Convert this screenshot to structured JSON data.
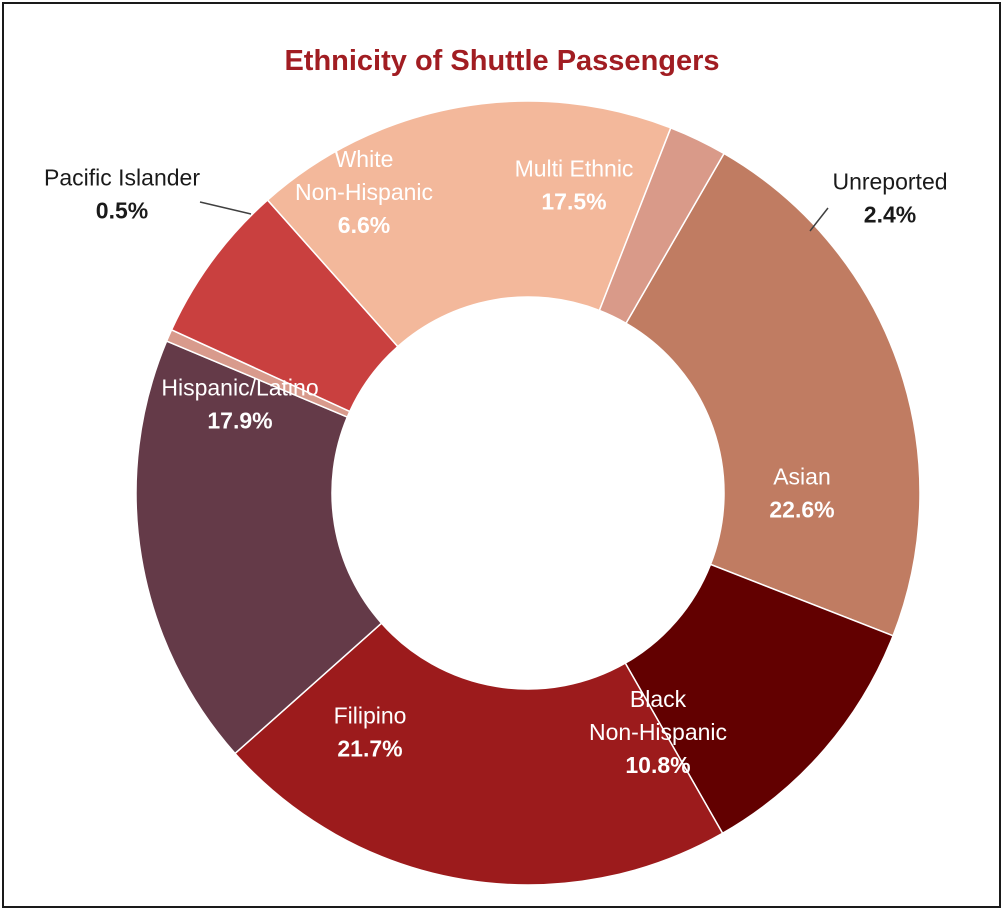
{
  "chart_data": {
    "type": "pie",
    "variant": "donut",
    "title": "Ethnicity of Shuttle Passengers",
    "title_color": "#a11d22",
    "unit": "%",
    "slices": [
      {
        "label_lines": [
          "Asian"
        ],
        "value": 22.6,
        "value_label": "22.6%",
        "color": "#c07c62",
        "label_color": "#ffffff"
      },
      {
        "label_lines": [
          "Black",
          "Non-Hispanic"
        ],
        "value": 10.8,
        "value_label": "10.8%",
        "color": "#620000",
        "label_color": "#ffffff"
      },
      {
        "label_lines": [
          "Filipino"
        ],
        "value": 21.7,
        "value_label": "21.7%",
        "color": "#9c1b1c",
        "label_color": "#ffffff"
      },
      {
        "label_lines": [
          "Hispanic/Latino"
        ],
        "value": 17.9,
        "value_label": "17.9%",
        "color": "#643a48",
        "label_color": "#ffffff"
      },
      {
        "label_lines": [
          "Pacific Islander"
        ],
        "value": 0.5,
        "value_label": "0.5%",
        "color": "#d89a8c",
        "label_color": "#1a1a1a"
      },
      {
        "label_lines": [
          "White",
          "Non-Hispanic"
        ],
        "value": 6.6,
        "value_label": "6.6%",
        "color": "#c9403f",
        "label_color": "#ffffff"
      },
      {
        "label_lines": [
          "Multi Ethnic"
        ],
        "value": 17.5,
        "value_label": "17.5%",
        "color": "#f3b89b",
        "label_color": "#ffffff"
      },
      {
        "label_lines": [
          "Unreported"
        ],
        "value": 2.4,
        "value_label": "2.4%",
        "color": "#d99a89",
        "label_color": "#1a1a1a"
      }
    ]
  }
}
